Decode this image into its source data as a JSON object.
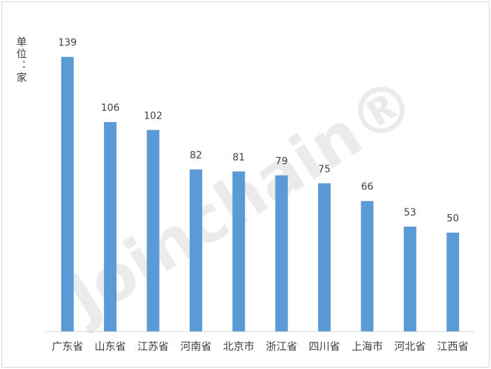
{
  "chart_data": {
    "type": "bar",
    "y_label": "单位：家",
    "watermark": "Joinchain®",
    "categories": [
      "广东省",
      "山东省",
      "江苏省",
      "河南省",
      "北京市",
      "浙江省",
      "四川省",
      "上海市",
      "河北省",
      "江西省"
    ],
    "values": [
      139,
      106,
      102,
      82,
      81,
      79,
      75,
      66,
      53,
      50
    ],
    "color": "#5b9bd5"
  }
}
